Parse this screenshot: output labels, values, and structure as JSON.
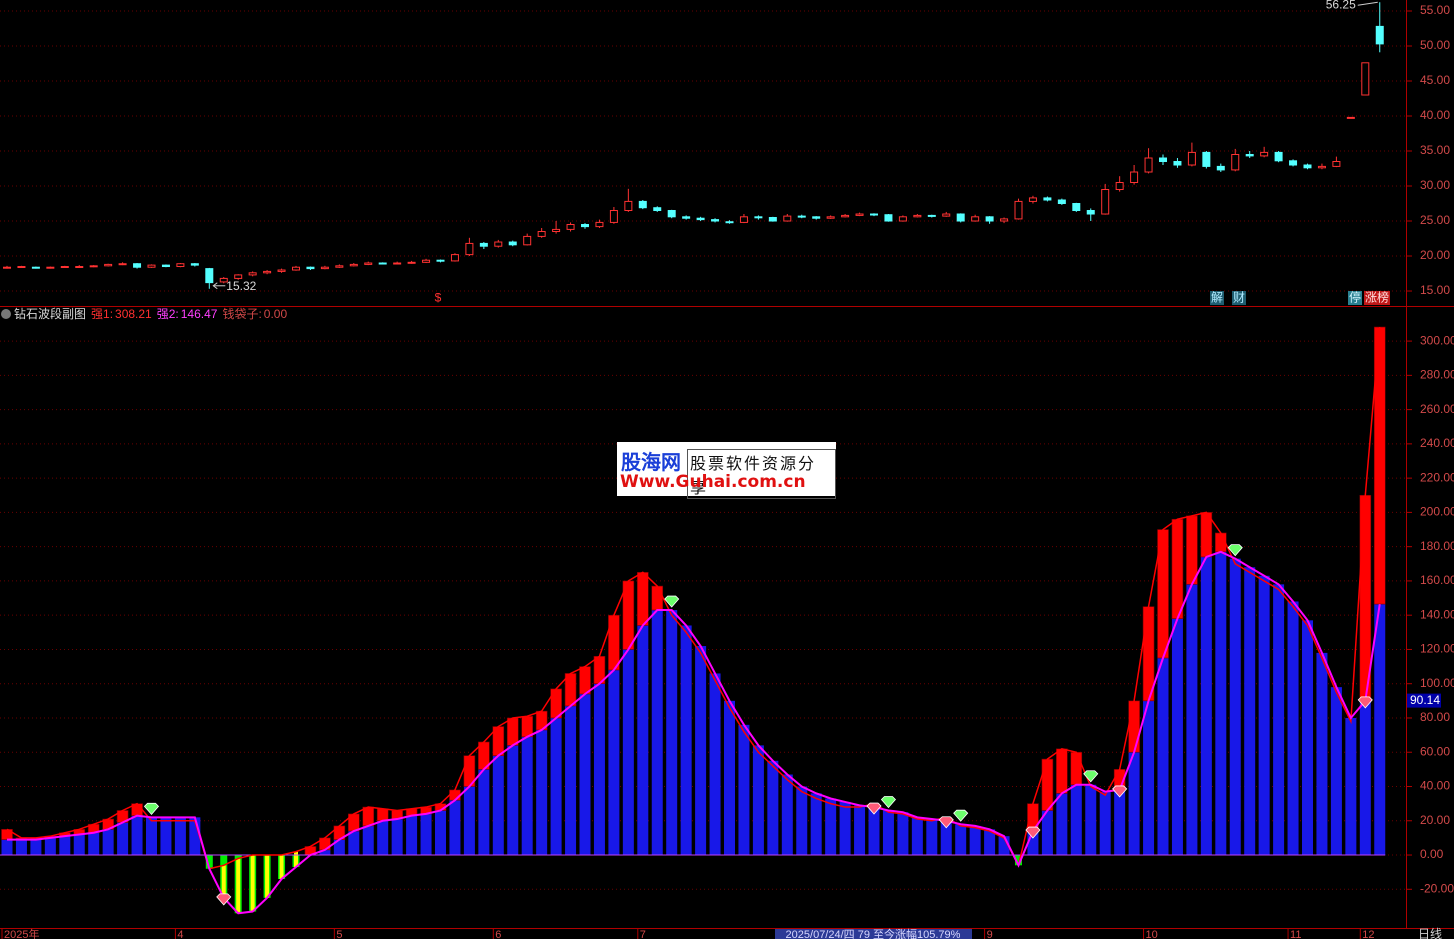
{
  "chart_data": [
    {
      "type": "candlestick",
      "ylim": [
        12.86,
        56.57
      ],
      "yticks": [
        {
          "value": 15,
          "label": "15.00"
        },
        {
          "value": 20,
          "label": "20.00"
        },
        {
          "value": 25,
          "label": "25.00"
        },
        {
          "value": 30,
          "label": "30.00"
        },
        {
          "value": 35,
          "label": "35.00"
        },
        {
          "value": 40,
          "label": "40.00"
        },
        {
          "value": 45,
          "label": "45.00"
        },
        {
          "value": 50,
          "label": "50.00"
        },
        {
          "value": 55,
          "label": "55.00"
        }
      ],
      "grid": true,
      "up_color": "#ff3232",
      "down_color": "#54ffff",
      "open": [
        18.3,
        18.4,
        18.4,
        18.3,
        18.4,
        18.5,
        18.5,
        18.6,
        18.8,
        18.9,
        18.4,
        18.7,
        18.5,
        18.9,
        18.2,
        16.3,
        16.8,
        17.3,
        17.6,
        17.8,
        18.0,
        18.4,
        18.2,
        18.4,
        18.6,
        18.8,
        19.0,
        18.9,
        19.0,
        19.1,
        19.4,
        19.3,
        20.2,
        21.8,
        21.4,
        22.0,
        21.6,
        22.8,
        23.5,
        23.8,
        24.5,
        24.2,
        24.8,
        26.5,
        27.8,
        26.9,
        26.5,
        25.6,
        25.4,
        25.2,
        24.9,
        24.8,
        25.6,
        25.5,
        25.0,
        25.7,
        25.6,
        25.4,
        25.6,
        25.8,
        26.0,
        25.9,
        25.0,
        25.6,
        25.8,
        25.7,
        26.0,
        25.0,
        25.6,
        25.0,
        25.3,
        27.8,
        28.3,
        28.0,
        27.5,
        26.5,
        26.0,
        29.5,
        30.5,
        32.0,
        34.0,
        33.5,
        33.0,
        34.8,
        32.8,
        32.3,
        34.5,
        34.3,
        34.8,
        33.6,
        33.0,
        32.6,
        32.8,
        39.8,
        43.0,
        52.8
      ],
      "high": [
        18.6,
        18.6,
        18.5,
        18.5,
        18.6,
        18.7,
        18.7,
        18.9,
        19.1,
        19.0,
        18.8,
        18.8,
        19.0,
        19.0,
        18.3,
        17.0,
        17.4,
        17.8,
        18.0,
        18.2,
        18.6,
        18.5,
        18.6,
        18.8,
        19.0,
        19.2,
        19.1,
        19.2,
        19.3,
        19.6,
        19.5,
        20.4,
        22.6,
        22.0,
        22.3,
        22.2,
        23.2,
        24.0,
        25.0,
        24.8,
        24.7,
        25.2,
        27.0,
        29.6,
        28.0,
        27.1,
        26.6,
        25.8,
        25.6,
        25.4,
        25.1,
        26.0,
        25.8,
        25.6,
        26.0,
        25.9,
        25.7,
        25.8,
        26.0,
        26.2,
        26.1,
        26.0,
        25.8,
        26.0,
        25.9,
        26.3,
        26.1,
        25.9,
        25.7,
        25.5,
        28.2,
        28.6,
        28.5,
        28.2,
        27.6,
        26.8,
        30.3,
        31.4,
        33.0,
        35.4,
        34.5,
        34.0,
        36.2,
        35.0,
        33.2,
        35.3,
        35.0,
        35.6,
        35.0,
        33.8,
        33.2,
        33.2,
        34.2,
        39.8,
        47.6,
        56.25
      ],
      "low": [
        18.2,
        18.3,
        18.2,
        18.2,
        18.3,
        18.4,
        18.4,
        18.5,
        18.7,
        18.2,
        18.3,
        18.4,
        18.4,
        18.5,
        15.32,
        16.1,
        16.6,
        17.1,
        17.4,
        17.6,
        17.9,
        18.0,
        18.1,
        18.3,
        18.5,
        18.7,
        18.8,
        18.8,
        18.9,
        19.0,
        19.1,
        19.2,
        20.0,
        21.0,
        21.2,
        21.4,
        21.5,
        22.6,
        23.2,
        23.5,
        23.9,
        24.0,
        24.6,
        26.3,
        26.7,
        26.3,
        25.4,
        25.2,
        25.0,
        24.8,
        24.6,
        24.7,
        25.2,
        24.9,
        24.9,
        25.4,
        25.2,
        25.3,
        25.5,
        25.7,
        25.7,
        24.9,
        24.9,
        25.5,
        25.5,
        25.6,
        24.8,
        24.9,
        24.6,
        24.7,
        25.2,
        27.5,
        27.8,
        27.3,
        26.3,
        25.0,
        25.9,
        29.2,
        30.2,
        31.8,
        33.0,
        32.6,
        32.8,
        32.5,
        32.0,
        32.1,
        34.0,
        34.1,
        33.4,
        32.8,
        32.4,
        32.4,
        32.7,
        39.8,
        43.0,
        49.1
      ],
      "close": [
        18.4,
        18.5,
        18.3,
        18.4,
        18.5,
        18.5,
        18.6,
        18.8,
        18.9,
        18.4,
        18.7,
        18.5,
        18.9,
        18.7,
        16.2,
        16.8,
        17.3,
        17.6,
        17.8,
        18.0,
        18.4,
        18.2,
        18.4,
        18.6,
        18.8,
        19.0,
        18.9,
        19.0,
        19.1,
        19.4,
        19.3,
        20.2,
        21.8,
        21.4,
        22.0,
        21.6,
        22.8,
        23.5,
        23.8,
        24.5,
        24.2,
        24.8,
        26.5,
        27.8,
        26.9,
        26.5,
        25.6,
        25.4,
        25.2,
        25.0,
        24.8,
        25.6,
        25.5,
        25.0,
        25.7,
        25.6,
        25.4,
        25.6,
        25.8,
        26.0,
        25.9,
        25.0,
        25.6,
        25.8,
        25.7,
        26.0,
        25.0,
        25.6,
        25.0,
        25.3,
        27.8,
        28.3,
        28.0,
        27.5,
        26.5,
        26.0,
        29.5,
        30.5,
        32.0,
        34.0,
        33.5,
        33.0,
        34.8,
        32.8,
        32.3,
        34.5,
        34.3,
        34.8,
        33.6,
        33.0,
        32.6,
        32.8,
        33.5,
        39.8,
        47.6,
        50.3
      ],
      "event_tags": [
        "$",
        "解",
        "财",
        "停",
        "涨榜"
      ]
    },
    {
      "type": "indicator-bar",
      "title": "钻石波段副图",
      "readout": [
        {
          "name": "强1:",
          "value": 308.21,
          "color": "#ff3030"
        },
        {
          "name": "强2:",
          "value": 146.47,
          "color": "#ff40ff"
        },
        {
          "name": "钱袋子:",
          "value": 0,
          "value_label": "0.00",
          "color": "#d04848"
        }
      ],
      "ylim": [
        -42.6,
        319.9
      ],
      "yticks": [
        {
          "value": -20,
          "label": "-20.00"
        },
        {
          "value": 0,
          "label": "0.00"
        },
        {
          "value": 20,
          "label": "20.00"
        },
        {
          "value": 40,
          "label": "40.00"
        },
        {
          "value": 60,
          "label": "60.00"
        },
        {
          "value": 80,
          "label": "80.00"
        },
        {
          "value": 100,
          "label": "100.00"
        },
        {
          "value": 120,
          "label": "120.00"
        },
        {
          "value": 140,
          "label": "140.00"
        },
        {
          "value": 160,
          "label": "160.00"
        },
        {
          "value": 180,
          "label": "180.00"
        },
        {
          "value": 200,
          "label": "200.00"
        },
        {
          "value": 220,
          "label": "220.00"
        },
        {
          "value": 240,
          "label": "240.00"
        },
        {
          "value": 260,
          "label": "260.00"
        },
        {
          "value": 280,
          "label": "280.00"
        },
        {
          "value": 300,
          "label": "300.00"
        }
      ],
      "grid": true,
      "categories": [
        "2025年",
        null,
        null,
        null,
        null,
        null,
        null,
        null,
        null,
        null,
        null,
        null,
        "4",
        null,
        null,
        null,
        null,
        null,
        null,
        null,
        null,
        null,
        null,
        "5",
        null,
        null,
        null,
        null,
        null,
        null,
        null,
        null,
        null,
        null,
        "6",
        null,
        null,
        null,
        null,
        null,
        null,
        null,
        null,
        null,
        "7",
        null,
        null,
        null,
        null,
        null,
        null,
        null,
        null,
        null,
        null,
        null,
        null,
        null,
        null,
        null,
        null,
        null,
        null,
        null,
        null,
        null,
        null,
        null,
        "9",
        null,
        null,
        null,
        null,
        null,
        null,
        null,
        null,
        null,
        null,
        "10",
        null,
        null,
        null,
        null,
        null,
        null,
        null,
        null,
        null,
        "11",
        null,
        null,
        null,
        null,
        "12",
        null
      ],
      "series": [
        {
          "color": "#ff0000",
          "values": [
            15,
            10,
            10,
            11,
            13,
            15,
            18,
            21,
            26,
            30,
            20,
            20,
            20,
            20,
            -8,
            -6,
            -2,
            0,
            0,
            0,
            2,
            5,
            10,
            17,
            24,
            28,
            27,
            26,
            27,
            28,
            30,
            38,
            58,
            66,
            75,
            80,
            81,
            84,
            97,
            106,
            110,
            116,
            140,
            160,
            165,
            157,
            140,
            130,
            118,
            102,
            86,
            72,
            60,
            52,
            44,
            37,
            33,
            30,
            28,
            28,
            30,
            25,
            24,
            21,
            20,
            22,
            17,
            16,
            14,
            10,
            -6,
            30,
            56,
            62,
            60,
            40,
            35,
            50,
            90,
            145,
            190,
            196,
            198,
            200,
            188,
            170,
            165,
            160,
            155,
            145,
            134,
            115,
            95,
            78,
            210,
            308.21
          ]
        },
        {
          "color": "#1818e8",
          "line_color": "#ff00ff",
          "values": [
            9,
            9,
            9,
            10,
            11,
            12,
            13,
            15,
            19,
            23,
            22,
            22,
            22,
            22,
            -8,
            -25,
            -34,
            -33,
            -25,
            -14,
            -7,
            0,
            3,
            9,
            14,
            17,
            20,
            21,
            23,
            24,
            26,
            32,
            40,
            50,
            58,
            64,
            69,
            73,
            80,
            87,
            94,
            100,
            108,
            120,
            134,
            143,
            143,
            134,
            122,
            106,
            90,
            76,
            64,
            55,
            47,
            40,
            36,
            33,
            31,
            29,
            28,
            26,
            25,
            22,
            21,
            20,
            18,
            17,
            15,
            11,
            -6,
            14,
            26,
            36,
            41,
            41,
            37,
            38,
            60,
            90,
            115,
            138,
            158,
            174,
            177,
            173,
            168,
            163,
            158,
            148,
            137,
            118,
            98,
            80,
            90,
            146.47
          ]
        }
      ],
      "negative_color": "#00ee00",
      "gap_color": "#ffff00",
      "cursor_value": 90.14,
      "status_text": "2025/07/24/四 79 至今涨幅105.79%",
      "period": "日线"
    }
  ],
  "watermark": {
    "brand": "股海网",
    "slogan": "股票软件资源分享",
    "url": "Www.Guhai.com.cn"
  }
}
